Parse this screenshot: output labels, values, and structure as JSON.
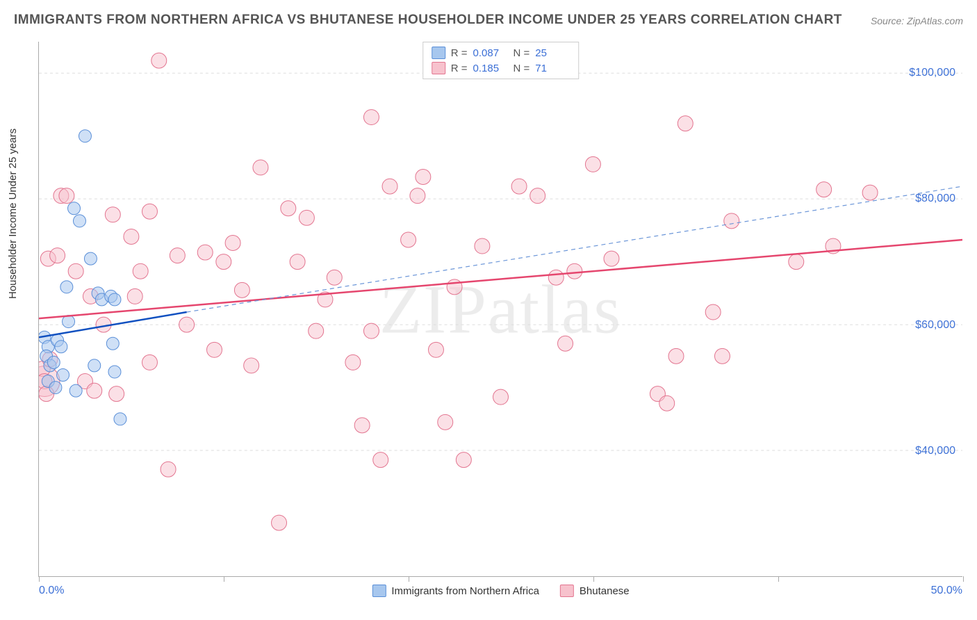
{
  "title": "IMMIGRANTS FROM NORTHERN AFRICA VS BHUTANESE HOUSEHOLDER INCOME UNDER 25 YEARS CORRELATION CHART",
  "source": "Source: ZipAtlas.com",
  "watermark": "ZIPatlas",
  "ylabel": "Householder Income Under 25 years",
  "chart": {
    "type": "scatter",
    "background_color": "#ffffff",
    "grid_color": "#dddddd",
    "xlim": [
      0,
      50
    ],
    "ylim": [
      20000,
      105000
    ],
    "y_ticks": [
      40000,
      60000,
      80000,
      100000
    ],
    "y_tick_labels": [
      "$40,000",
      "$60,000",
      "$80,000",
      "$100,000"
    ],
    "x_ticks": [
      0,
      10,
      20,
      30,
      40,
      50
    ],
    "x_axis_label_left": "0.0%",
    "x_axis_label_right": "50.0%",
    "series": [
      {
        "name": "Immigrants from Northern Africa",
        "fill": "#a7c7ee",
        "stroke": "#5a8fd8",
        "fill_opacity": 0.55,
        "r_val": "0.087",
        "n_val": "25",
        "marker_radius": 9,
        "points": [
          [
            0.3,
            58000
          ],
          [
            0.5,
            56500
          ],
          [
            0.4,
            55000
          ],
          [
            0.6,
            53500
          ],
          [
            0.8,
            54000
          ],
          [
            0.5,
            51000
          ],
          [
            0.9,
            50000
          ],
          [
            1.0,
            57500
          ],
          [
            1.2,
            56500
          ],
          [
            1.5,
            66000
          ],
          [
            1.6,
            60500
          ],
          [
            1.9,
            78500
          ],
          [
            2.2,
            76500
          ],
          [
            2.5,
            90000
          ],
          [
            2.8,
            70500
          ],
          [
            3.0,
            53500
          ],
          [
            3.2,
            65000
          ],
          [
            3.4,
            64000
          ],
          [
            3.9,
            64500
          ],
          [
            4.0,
            57000
          ],
          [
            4.1,
            64000
          ],
          [
            4.1,
            52500
          ],
          [
            4.4,
            45000
          ],
          [
            2.0,
            49500
          ],
          [
            1.3,
            52000
          ]
        ],
        "regression": {
          "x1": 0,
          "y1": 58000,
          "x2": 8,
          "y2": 62000,
          "stroke": "#1050c0",
          "width": 2.5,
          "dash": ""
        },
        "extrapolation": {
          "x1": 8,
          "y1": 62000,
          "x2": 50,
          "y2": 82000,
          "stroke": "#6a95d8",
          "width": 1.2,
          "dash": "6,5"
        }
      },
      {
        "name": "Bhutanese",
        "fill": "#f7c2cd",
        "stroke": "#e37590",
        "fill_opacity": 0.5,
        "r_val": "0.185",
        "n_val": "71",
        "marker_radius": 11,
        "points": [
          [
            0.2,
            53000
          ],
          [
            0.3,
            51000
          ],
          [
            0.5,
            70500
          ],
          [
            1.0,
            71000
          ],
          [
            1.2,
            80500
          ],
          [
            1.5,
            80500
          ],
          [
            2.0,
            68500
          ],
          [
            2.5,
            51000
          ],
          [
            2.8,
            64500
          ],
          [
            3.0,
            49500
          ],
          [
            3.5,
            60000
          ],
          [
            4.0,
            77500
          ],
          [
            4.2,
            49000
          ],
          [
            5.0,
            74000
          ],
          [
            5.2,
            64500
          ],
          [
            5.5,
            68500
          ],
          [
            6.0,
            78000
          ],
          [
            6.5,
            102000
          ],
          [
            7.0,
            37000
          ],
          [
            7.5,
            71000
          ],
          [
            8.0,
            60000
          ],
          [
            9.0,
            71500
          ],
          [
            9.5,
            56000
          ],
          [
            10.0,
            70000
          ],
          [
            10.5,
            73000
          ],
          [
            11.0,
            65500
          ],
          [
            11.5,
            53500
          ],
          [
            12.0,
            85000
          ],
          [
            13.0,
            28500
          ],
          [
            13.5,
            78500
          ],
          [
            14.0,
            70000
          ],
          [
            14.5,
            77000
          ],
          [
            15.0,
            59000
          ],
          [
            15.5,
            64000
          ],
          [
            16.0,
            67500
          ],
          [
            17.0,
            54000
          ],
          [
            17.5,
            44000
          ],
          [
            18.0,
            93000
          ],
          [
            18.5,
            38500
          ],
          [
            19.0,
            82000
          ],
          [
            20.0,
            73500
          ],
          [
            20.5,
            80500
          ],
          [
            20.8,
            83500
          ],
          [
            21.5,
            56000
          ],
          [
            22.0,
            44500
          ],
          [
            22.5,
            66000
          ],
          [
            23.0,
            38500
          ],
          [
            24.0,
            72500
          ],
          [
            25.0,
            48500
          ],
          [
            26.0,
            82000
          ],
          [
            27.0,
            80500
          ],
          [
            28.0,
            67500
          ],
          [
            28.5,
            57000
          ],
          [
            29.0,
            68500
          ],
          [
            30.0,
            85500
          ],
          [
            31.0,
            70500
          ],
          [
            33.5,
            49000
          ],
          [
            34.0,
            47500
          ],
          [
            34.5,
            55000
          ],
          [
            35.0,
            92000
          ],
          [
            36.5,
            62000
          ],
          [
            37.0,
            55000
          ],
          [
            37.5,
            76500
          ],
          [
            41.0,
            70000
          ],
          [
            42.5,
            81500
          ],
          [
            43.0,
            72500
          ],
          [
            45.0,
            81000
          ],
          [
            18.0,
            59000
          ],
          [
            6.0,
            54000
          ],
          [
            0.4,
            49000
          ],
          [
            0.6,
            54500
          ]
        ],
        "large_points": [
          [
            0.3,
            51000,
            22
          ]
        ],
        "regression": {
          "x1": 0,
          "y1": 61000,
          "x2": 50,
          "y2": 73500,
          "stroke": "#e5466e",
          "width": 2.5,
          "dash": ""
        }
      }
    ]
  },
  "legend_bottom": {
    "series1": "Immigrants from Northern Africa",
    "series2": "Bhutanese"
  }
}
